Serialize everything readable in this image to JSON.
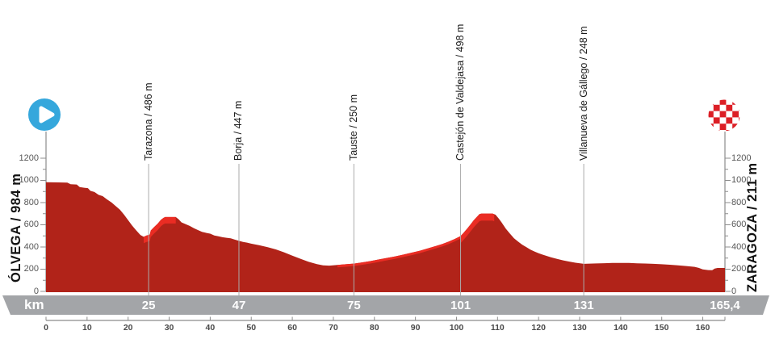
{
  "stage": {
    "start_label": "ÓLVEGA / 984 m",
    "finish_label": "ZARAGOZA / 211 m",
    "km_axis_label": "km",
    "total_distance_label": "165,4"
  },
  "waypoints": [
    {
      "name": "Tarazona / 486 m",
      "km": 25,
      "km_label": "25",
      "elevation_m": 486
    },
    {
      "name": "Borja / 447 m",
      "km": 47,
      "km_label": "47",
      "elevation_m": 447
    },
    {
      "name": "Tauste / 250 m",
      "km": 75,
      "km_label": "75",
      "elevation_m": 250
    },
    {
      "name": "Castejón de Valdejasa / 498 m",
      "km": 101,
      "km_label": "101",
      "elevation_m": 498
    },
    {
      "name": "Villanueva de Gállego / 248 m",
      "km": 131,
      "km_label": "131",
      "elevation_m": 248
    }
  ],
  "axes": {
    "elev_tick_labels": [
      0,
      200,
      400,
      600,
      800,
      1000,
      1200
    ],
    "elev_minor_ticks": [
      100,
      300,
      500,
      700,
      900,
      1100
    ],
    "km_tick_labels": [
      0,
      10,
      20,
      30,
      40,
      50,
      60,
      70,
      80,
      90,
      100,
      110,
      120,
      130,
      140,
      150,
      160
    ],
    "km_end": 165.4
  },
  "icons": {
    "start": "play-icon",
    "finish": "checkered-finish-icon"
  },
  "colors": {
    "profile_fill": "#b12319",
    "climb_fill": "#ea2c23",
    "start_blue": "#35a7dc",
    "finish_red": "#dc1f26",
    "band_gray": "#a3a5a8",
    "marker_line": "#ababab",
    "axis_gray": "#8c8c8c",
    "label_text": "#1b1b1b",
    "tick_text": "#565656"
  },
  "chart_data": {
    "type": "area",
    "title": "Stage elevation profile",
    "xlabel": "km",
    "ylabel": "m",
    "xlim": [
      0,
      165.4
    ],
    "ylim": [
      0,
      1200
    ],
    "grid": false,
    "start": {
      "name": "ÓLVEGA",
      "elevation_m": 984
    },
    "finish": {
      "name": "ZARAGOZA",
      "elevation_m": 211
    },
    "profile_km_m": [
      [
        0,
        984
      ],
      [
        3,
        982
      ],
      [
        5.2,
        980
      ],
      [
        6,
        966
      ],
      [
        7.5,
        963
      ],
      [
        8.2,
        940
      ],
      [
        9.3,
        934
      ],
      [
        10.2,
        930
      ],
      [
        10.8,
        906
      ],
      [
        11.8,
        895
      ],
      [
        12.8,
        870
      ],
      [
        13.8,
        858
      ],
      [
        14.8,
        830
      ],
      [
        16,
        800
      ],
      [
        17,
        768
      ],
      [
        18,
        737
      ],
      [
        19,
        692
      ],
      [
        20,
        642
      ],
      [
        21,
        592
      ],
      [
        22,
        548
      ],
      [
        23,
        508
      ],
      [
        23.8,
        492
      ],
      [
        24.5,
        503
      ],
      [
        25.3,
        512
      ],
      [
        25.5,
        548
      ],
      [
        26.3,
        578
      ],
      [
        27.2,
        610
      ],
      [
        28,
        645
      ],
      [
        28.6,
        662
      ],
      [
        29,
        670
      ],
      [
        31.6,
        670
      ],
      [
        32.3,
        650
      ],
      [
        33,
        622
      ],
      [
        35,
        590
      ],
      [
        36,
        570
      ],
      [
        37,
        553
      ],
      [
        38,
        537
      ],
      [
        39,
        527
      ],
      [
        40,
        520
      ],
      [
        41,
        504
      ],
      [
        42,
        496
      ],
      [
        43,
        488
      ],
      [
        44,
        483
      ],
      [
        45,
        478
      ],
      [
        46,
        466
      ],
      [
        47,
        455
      ],
      [
        48,
        446
      ],
      [
        49,
        439
      ],
      [
        50,
        430
      ],
      [
        52,
        415
      ],
      [
        54,
        398
      ],
      [
        56,
        378
      ],
      [
        58,
        352
      ],
      [
        60,
        322
      ],
      [
        62,
        294
      ],
      [
        64,
        266
      ],
      [
        66,
        245
      ],
      [
        67.5,
        234
      ],
      [
        69,
        232
      ],
      [
        71,
        238
      ],
      [
        73,
        244
      ],
      [
        75,
        250
      ],
      [
        77,
        261
      ],
      [
        79,
        273
      ],
      [
        81,
        287
      ],
      [
        83,
        301
      ],
      [
        85,
        315
      ],
      [
        87,
        331
      ],
      [
        89,
        348
      ],
      [
        91,
        366
      ],
      [
        93,
        387
      ],
      [
        95,
        409
      ],
      [
        96.5,
        426
      ],
      [
        98,
        447
      ],
      [
        99.5,
        471
      ],
      [
        101,
        498
      ],
      [
        101.8,
        531
      ],
      [
        102.6,
        566
      ],
      [
        103.4,
        603
      ],
      [
        104.2,
        641
      ],
      [
        105,
        673
      ],
      [
        105.6,
        696
      ],
      [
        106.1,
        701
      ],
      [
        108.8,
        701
      ],
      [
        109.5,
        691
      ],
      [
        110.3,
        656
      ],
      [
        111,
        621
      ],
      [
        112,
        566
      ],
      [
        113,
        521
      ],
      [
        114,
        479
      ],
      [
        115,
        449
      ],
      [
        116,
        421
      ],
      [
        117,
        399
      ],
      [
        118,
        376
      ],
      [
        119,
        359
      ],
      [
        120,
        343
      ],
      [
        121,
        331
      ],
      [
        122,
        319
      ],
      [
        123,
        307
      ],
      [
        124.5,
        293
      ],
      [
        126,
        279
      ],
      [
        127.5,
        268
      ],
      [
        129,
        258
      ],
      [
        130.5,
        251
      ],
      [
        131,
        248
      ],
      [
        132.5,
        250
      ],
      [
        134,
        252
      ],
      [
        136,
        254
      ],
      [
        138,
        256
      ],
      [
        140,
        257
      ],
      [
        142,
        256
      ],
      [
        144,
        253
      ],
      [
        146,
        251
      ],
      [
        148,
        248
      ],
      [
        150,
        244
      ],
      [
        152,
        240
      ],
      [
        154,
        234
      ],
      [
        156,
        228
      ],
      [
        158,
        221
      ],
      [
        159,
        212
      ],
      [
        160,
        198
      ],
      [
        161.3,
        192
      ],
      [
        162.3,
        191
      ],
      [
        162.9,
        206
      ],
      [
        163.6,
        211
      ],
      [
        165.4,
        211
      ]
    ],
    "climb_segments": [
      {
        "from_km": 23.8,
        "to_km": 31.6,
        "band_m": 58
      },
      {
        "from_km": 71,
        "to_km": 101,
        "band_m": 22
      },
      {
        "from_km": 101,
        "to_km": 109.2,
        "band_m": 64
      }
    ]
  }
}
